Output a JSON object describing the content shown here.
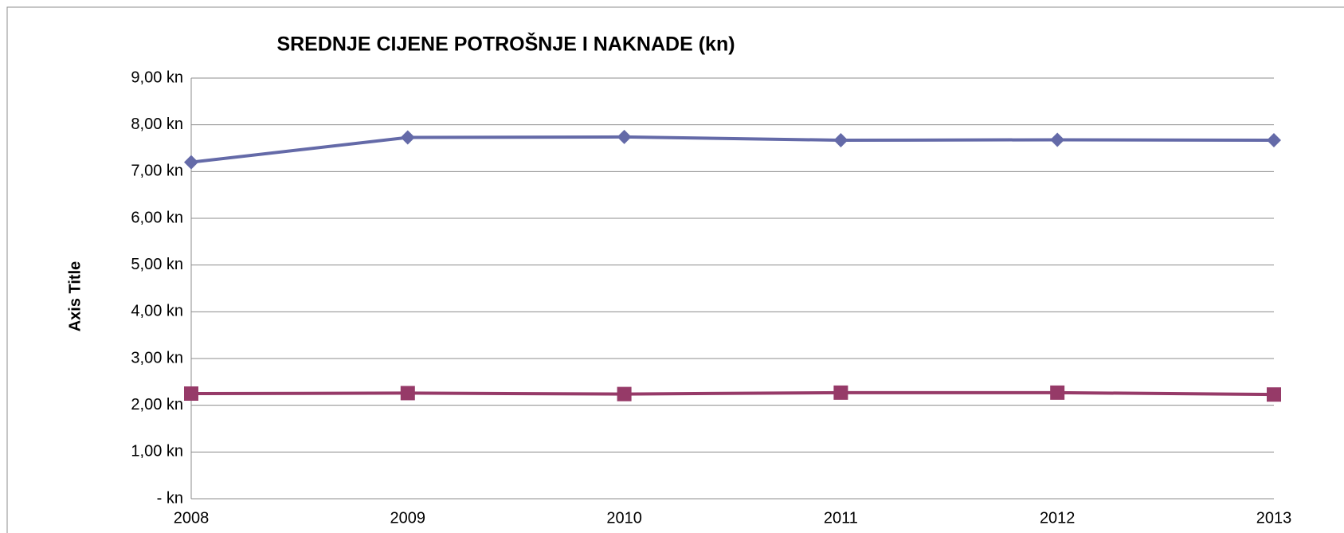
{
  "chart_data": {
    "type": "line",
    "title": "SREDNJE CIJENE POTROŠNJE I NAKNADE (kn)",
    "y_label": "Axis Title",
    "categories": [
      "2008",
      "2009",
      "2010",
      "2011",
      "2012",
      "2013"
    ],
    "series": [
      {
        "color": "#646aa8",
        "marker": "diamond",
        "values": [
          7.2,
          7.73,
          7.74,
          7.67,
          7.68,
          7.67
        ]
      },
      {
        "color": "#963a68",
        "marker": "square",
        "values": [
          2.25,
          2.26,
          2.24,
          2.27,
          2.27,
          2.23
        ]
      }
    ],
    "ylim": [
      0,
      9
    ],
    "yticks": [
      {
        "value": 0,
        "label": "- kn"
      },
      {
        "value": 1,
        "label": "1,00 kn"
      },
      {
        "value": 2,
        "label": "2,00 kn"
      },
      {
        "value": 3,
        "label": "3,00 kn"
      },
      {
        "value": 4,
        "label": "4,00 kn"
      },
      {
        "value": 5,
        "label": "5,00 kn"
      },
      {
        "value": 6,
        "label": "6,00 kn"
      },
      {
        "value": 7,
        "label": "7,00 kn"
      },
      {
        "value": 8,
        "label": "8,00 kn"
      },
      {
        "value": 9,
        "label": "9,00 kn"
      }
    ],
    "grid": true
  }
}
